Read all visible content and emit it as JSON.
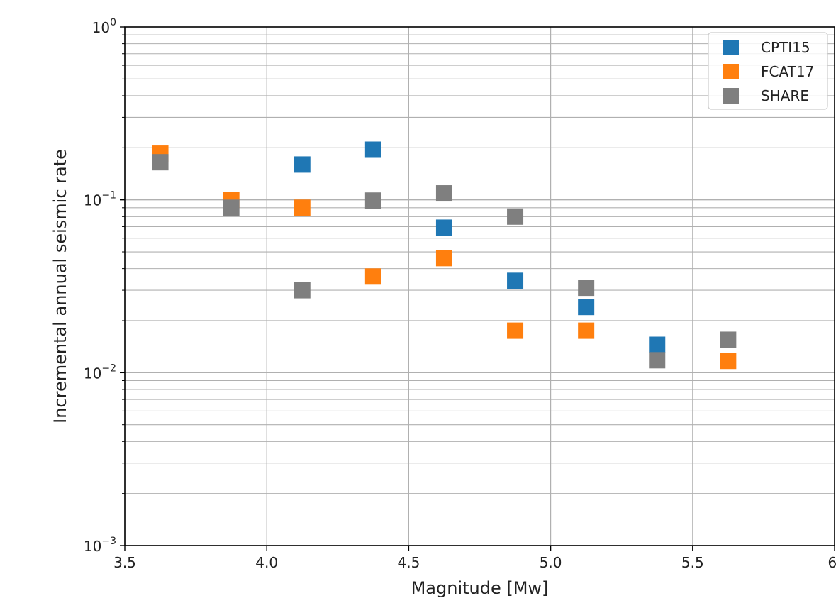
{
  "chart_data": {
    "type": "scatter",
    "xlabel": "Magnitude [Mw]",
    "ylabel": "Incremental annual seismic rate",
    "xlim": [
      3.5,
      6.0
    ],
    "ylim": [
      0.001,
      1
    ],
    "yscale": "log",
    "grid": true,
    "legend": "top-right",
    "x_ticks": [
      {
        "value": 3.5,
        "label": "3.5"
      },
      {
        "value": 4.0,
        "label": "4.0"
      },
      {
        "value": 4.5,
        "label": "4.5"
      },
      {
        "value": 5.0,
        "label": "5.0"
      },
      {
        "value": 5.5,
        "label": "5.5"
      },
      {
        "value": 6.0,
        "label": "6."
      }
    ],
    "y_ticks": [
      {
        "value": 1,
        "base": "10",
        "exp": "0"
      },
      {
        "value": 0.1,
        "base": "10",
        "exp": "−1"
      },
      {
        "value": 0.01,
        "base": "10",
        "exp": "−2"
      },
      {
        "value": 0.001,
        "base": "10",
        "exp": "−3"
      }
    ],
    "series": [
      {
        "name": "CPTI15",
        "color": "#1f77b4",
        "points": [
          {
            "x": 4.125,
            "y": 0.16
          },
          {
            "x": 4.375,
            "y": 0.195
          },
          {
            "x": 4.625,
            "y": 0.069
          },
          {
            "x": 4.875,
            "y": 0.034
          },
          {
            "x": 5.125,
            "y": 0.024
          },
          {
            "x": 5.375,
            "y": 0.0145
          }
        ]
      },
      {
        "name": "FCAT17",
        "color": "#ff7f0e",
        "points": [
          {
            "x": 3.625,
            "y": 0.185
          },
          {
            "x": 3.875,
            "y": 0.1
          },
          {
            "x": 4.125,
            "y": 0.09
          },
          {
            "x": 4.375,
            "y": 0.036
          },
          {
            "x": 4.625,
            "y": 0.046
          },
          {
            "x": 4.875,
            "y": 0.0175
          },
          {
            "x": 5.125,
            "y": 0.0175
          },
          {
            "x": 5.625,
            "y": 0.0117
          }
        ]
      },
      {
        "name": "SHARE",
        "color": "#7f7f7f",
        "points": [
          {
            "x": 3.625,
            "y": 0.165
          },
          {
            "x": 3.875,
            "y": 0.09
          },
          {
            "x": 4.125,
            "y": 0.03
          },
          {
            "x": 4.375,
            "y": 0.099
          },
          {
            "x": 4.625,
            "y": 0.109
          },
          {
            "x": 4.875,
            "y": 0.08
          },
          {
            "x": 5.125,
            "y": 0.031
          },
          {
            "x": 5.375,
            "y": 0.0118
          },
          {
            "x": 5.625,
            "y": 0.0155
          }
        ]
      }
    ]
  }
}
